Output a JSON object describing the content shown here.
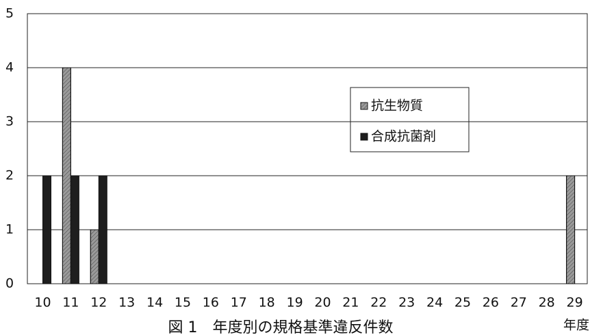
{
  "chart_data": {
    "type": "bar",
    "title": "図 1　年度別の規格基準違反件数",
    "x_label": "年度",
    "categories": [
      "10",
      "11",
      "12",
      "13",
      "14",
      "15",
      "16",
      "17",
      "18",
      "19",
      "20",
      "21",
      "22",
      "23",
      "24",
      "25",
      "26",
      "27",
      "28",
      "29"
    ],
    "series": [
      {
        "name": "抗生物質",
        "color": "#9a9a9a",
        "values": [
          0,
          4,
          1,
          0,
          0,
          0,
          0,
          0,
          0,
          0,
          0,
          0,
          0,
          0,
          0,
          0,
          0,
          0,
          0,
          2
        ]
      },
      {
        "name": "合成抗菌剤",
        "color": "#1e1e1e",
        "values": [
          2,
          2,
          2,
          0,
          0,
          0,
          0,
          0,
          0,
          0,
          0,
          0,
          0,
          0,
          0,
          0,
          0,
          0,
          0,
          0
        ]
      }
    ],
    "ylim": [
      0,
      5
    ],
    "yticks": [
      0,
      1,
      2,
      3,
      4,
      5
    ],
    "grid": true
  }
}
